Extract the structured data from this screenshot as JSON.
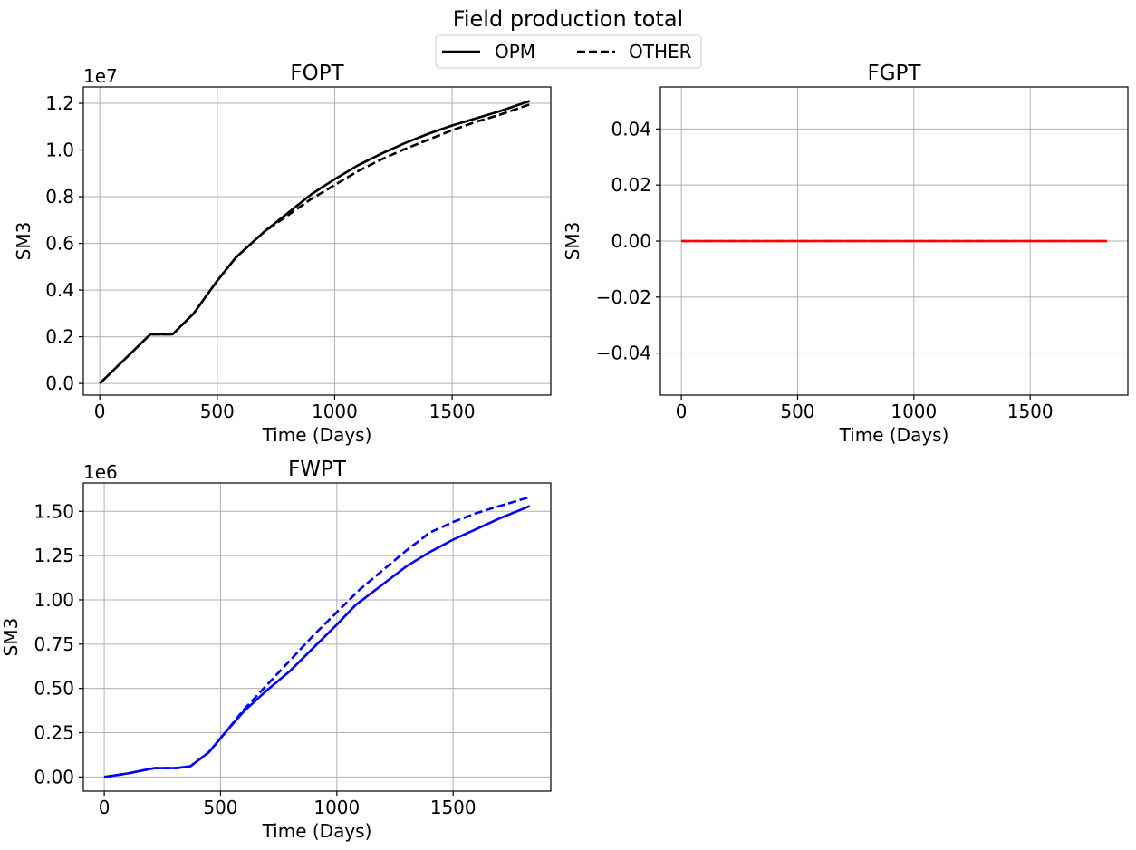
{
  "figure": {
    "title": "Field production total",
    "legend": {
      "placement": "top-center",
      "entries": [
        {
          "label": "OPM",
          "style": "solid"
        },
        {
          "label": "OTHER",
          "style": "dashed"
        }
      ]
    }
  },
  "chart_data": [
    {
      "type": "line",
      "title": "FOPT",
      "xlabel": "Time (Days)",
      "ylabel": "SM3",
      "offset_label": "1e7",
      "scale": 10000000,
      "color": "#000000",
      "grid": true,
      "xlim": [
        -70,
        1920
      ],
      "ylim": [
        -0.05,
        1.27
      ],
      "xticks": [
        0,
        500,
        1000,
        1500
      ],
      "xtick_labels": [
        "0",
        "500",
        "1000",
        "1500"
      ],
      "yticks": [
        0.0,
        0.2,
        0.4,
        0.6,
        0.8,
        1.0,
        1.2
      ],
      "ytick_labels": [
        "0.0",
        "0.2",
        "0.4",
        "0.6",
        "0.8",
        "1.0",
        "1.2"
      ],
      "series": [
        {
          "name": "OPM",
          "dash": "solid",
          "x": [
            0,
            215,
            310,
            400,
            500,
            580,
            700,
            800,
            900,
            1000,
            1100,
            1200,
            1300,
            1400,
            1500,
            1600,
            1700,
            1830
          ],
          "y": [
            0,
            0.21,
            0.21,
            0.3,
            0.44,
            0.54,
            0.65,
            0.73,
            0.81,
            0.875,
            0.935,
            0.985,
            1.03,
            1.07,
            1.105,
            1.135,
            1.165,
            1.21
          ]
        },
        {
          "name": "OTHER",
          "dash": "dashed",
          "x": [
            0,
            215,
            310,
            400,
            500,
            580,
            700,
            800,
            900,
            1000,
            1100,
            1200,
            1300,
            1400,
            1500,
            1600,
            1700,
            1830
          ],
          "y": [
            0,
            0.21,
            0.21,
            0.3,
            0.44,
            0.54,
            0.65,
            0.72,
            0.79,
            0.85,
            0.91,
            0.96,
            1.005,
            1.045,
            1.085,
            1.12,
            1.15,
            1.195
          ]
        }
      ]
    },
    {
      "type": "line",
      "title": "FGPT",
      "xlabel": "Time (Days)",
      "ylabel": "SM3",
      "offset_label": "",
      "scale": 1,
      "color": "#ff0000",
      "grid": true,
      "xlim": [
        -90,
        1920
      ],
      "ylim": [
        -0.055,
        0.055
      ],
      "xticks": [
        0,
        500,
        1000,
        1500
      ],
      "xtick_labels": [
        "0",
        "500",
        "1000",
        "1500"
      ],
      "yticks": [
        -0.04,
        -0.02,
        0.0,
        0.02,
        0.04
      ],
      "ytick_labels": [
        "−0.04",
        "−0.02",
        "0.00",
        "0.02",
        "0.04"
      ],
      "series": [
        {
          "name": "OPM",
          "dash": "solid",
          "x": [
            0,
            1830
          ],
          "y": [
            0,
            0
          ]
        },
        {
          "name": "OTHER",
          "dash": "dashed",
          "x": [
            0,
            1830
          ],
          "y": [
            0,
            0
          ]
        }
      ]
    },
    {
      "type": "line",
      "title": "FWPT",
      "xlabel": "Time (Days)",
      "ylabel": "SM3",
      "offset_label": "1e6",
      "scale": 1000000,
      "color": "#0000ff",
      "grid": true,
      "xlim": [
        -90,
        1920
      ],
      "ylim": [
        -0.08,
        1.66
      ],
      "xticks": [
        0,
        500,
        1000,
        1500
      ],
      "xtick_labels": [
        "0",
        "500",
        "1000",
        "1500"
      ],
      "yticks": [
        0.0,
        0.25,
        0.5,
        0.75,
        1.0,
        1.25,
        1.5
      ],
      "ytick_labels": [
        "0.00",
        "0.25",
        "0.50",
        "0.75",
        "1.00",
        "1.25",
        "1.50"
      ],
      "series": [
        {
          "name": "OPM",
          "dash": "solid",
          "x": [
            0,
            100,
            215,
            310,
            370,
            450,
            520,
            600,
            700,
            800,
            900,
            1000,
            1080,
            1200,
            1300,
            1400,
            1500,
            1600,
            1700,
            1830
          ],
          "y": [
            0,
            0.02,
            0.05,
            0.05,
            0.06,
            0.14,
            0.25,
            0.37,
            0.49,
            0.6,
            0.73,
            0.86,
            0.97,
            1.09,
            1.19,
            1.27,
            1.34,
            1.4,
            1.46,
            1.53
          ]
        },
        {
          "name": "OTHER",
          "dash": "dashed",
          "x": [
            0,
            100,
            215,
            310,
            370,
            450,
            520,
            600,
            700,
            800,
            900,
            1000,
            1100,
            1200,
            1300,
            1350,
            1400,
            1500,
            1600,
            1700,
            1830
          ],
          "y": [
            0,
            0.02,
            0.05,
            0.05,
            0.06,
            0.14,
            0.25,
            0.38,
            0.52,
            0.66,
            0.8,
            0.93,
            1.06,
            1.17,
            1.28,
            1.33,
            1.38,
            1.44,
            1.49,
            1.53,
            1.58
          ]
        }
      ]
    }
  ]
}
